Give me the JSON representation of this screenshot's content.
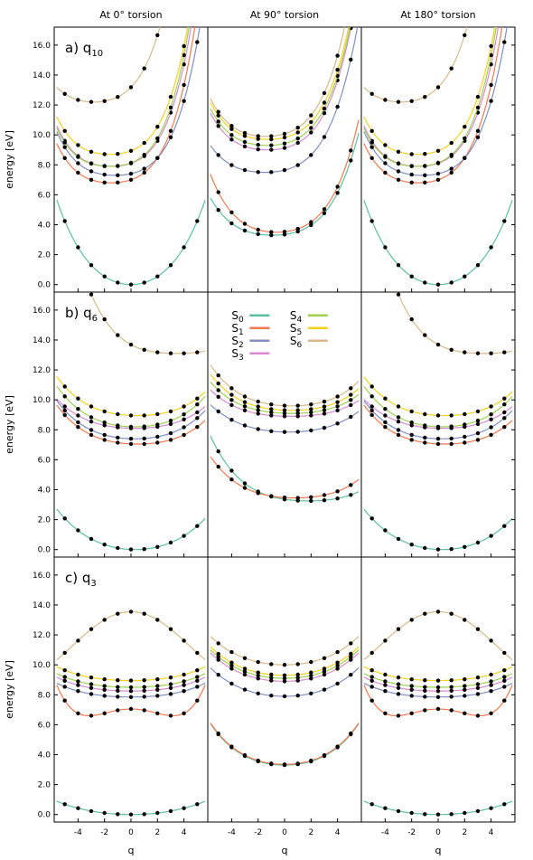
{
  "columns": [
    "At 0° torsion",
    "At 90° torsion",
    "At 180° torsion"
  ],
  "rows": [
    {
      "label": "a) q",
      "sub": "10"
    },
    {
      "label": "b) q",
      "sub": "6"
    },
    {
      "label": "c) q",
      "sub": "3"
    }
  ],
  "ylabel": "energy [eV]",
  "xlabel": "q",
  "yticks": [
    "0.0",
    "2.0",
    "4.0",
    "6.0",
    "8.0",
    "10.0",
    "12.0",
    "14.0",
    "16.0"
  ],
  "xticks": [
    "-4",
    "-2",
    "0",
    "2",
    "4"
  ],
  "legend": [
    {
      "base": "S",
      "sub": "0",
      "color": "#5cbf9f"
    },
    {
      "base": "S",
      "sub": "1",
      "color": "#f07850"
    },
    {
      "base": "S",
      "sub": "2",
      "color": "#7f8fc4"
    },
    {
      "base": "S",
      "sub": "3",
      "color": "#d98ad0"
    },
    {
      "base": "S",
      "sub": "4",
      "color": "#9fd050"
    },
    {
      "base": "S",
      "sub": "5",
      "color": "#f5d020"
    },
    {
      "base": "S",
      "sub": "6",
      "color": "#d8b888"
    }
  ],
  "chart_data": {
    "type": "line",
    "xlim": [
      -5.8,
      5.8
    ],
    "ylim": [
      -0.5,
      17.2
    ],
    "grid": false,
    "legend_position": "middle panel of row b",
    "curve_form": "E(q) = e0 + a*(q - c)^2 + b*(q - c)^4",
    "panels": [
      {
        "row": 0,
        "col": 0,
        "curves": [
          {
            "state": "S0",
            "e0": 0.0,
            "c": 0.0,
            "a": 0.13,
            "b": 0.0016
          },
          {
            "state": "S1",
            "e0": 6.8,
            "c": -1.5,
            "a": 0.08,
            "b": 0.0045
          },
          {
            "state": "S2",
            "e0": 7.3,
            "c": -1.2,
            "a": 0.07,
            "b": 0.0042
          },
          {
            "state": "S3",
            "e0": 7.9,
            "c": -1.5,
            "a": 0.08,
            "b": 0.0048
          },
          {
            "state": "S4",
            "e0": 7.9,
            "c": -1.6,
            "a": 0.08,
            "b": 0.005
          },
          {
            "state": "S5",
            "e0": 8.7,
            "c": -1.6,
            "a": 0.08,
            "b": 0.0048
          },
          {
            "state": "S6",
            "e0": 12.2,
            "c": -2.8,
            "a": 0.09,
            "b": 0.0045
          }
        ]
      },
      {
        "row": 0,
        "col": 1,
        "curves": [
          {
            "state": "S0",
            "e0": 3.3,
            "c": -0.9,
            "a": 0.06,
            "b": 0.0024
          },
          {
            "state": "S1",
            "e0": 3.5,
            "c": -0.6,
            "a": 0.08,
            "b": 0.003
          },
          {
            "state": "S2",
            "e0": 7.5,
            "c": -1.5,
            "a": 0.06,
            "b": 0.0028
          },
          {
            "state": "S3",
            "e0": 9.0,
            "c": -1.3,
            "a": 0.07,
            "b": 0.0034
          },
          {
            "state": "S4",
            "e0": 9.3,
            "c": -1.3,
            "a": 0.07,
            "b": 0.0034
          },
          {
            "state": "S5",
            "e0": 9.7,
            "c": -1.3,
            "a": 0.07,
            "b": 0.0034
          },
          {
            "state": "S6",
            "e0": 9.9,
            "c": -1.4,
            "a": 0.08,
            "b": 0.0036
          }
        ]
      },
      {
        "row": 0,
        "col": 2,
        "curves": [
          {
            "state": "S0",
            "e0": 0.0,
            "c": 0.0,
            "a": 0.13,
            "b": 0.0016
          },
          {
            "state": "S1",
            "e0": 6.8,
            "c": -1.5,
            "a": 0.08,
            "b": 0.0045
          },
          {
            "state": "S2",
            "e0": 7.3,
            "c": -1.2,
            "a": 0.07,
            "b": 0.0042
          },
          {
            "state": "S3",
            "e0": 7.9,
            "c": -1.5,
            "a": 0.08,
            "b": 0.0048
          },
          {
            "state": "S4",
            "e0": 7.9,
            "c": -1.6,
            "a": 0.08,
            "b": 0.005
          },
          {
            "state": "S5",
            "e0": 8.7,
            "c": -1.6,
            "a": 0.08,
            "b": 0.0048
          },
          {
            "state": "S6",
            "e0": 12.2,
            "c": -2.8,
            "a": 0.09,
            "b": 0.0045
          }
        ]
      },
      {
        "row": 1,
        "col": 0,
        "curves": [
          {
            "state": "S0",
            "e0": 0.0,
            "c": 0.3,
            "a": 0.06,
            "b": 0.0005
          },
          {
            "state": "S1",
            "e0": 7.05,
            "c": 0.5,
            "a": 0.04,
            "b": 0.0008
          },
          {
            "state": "S2",
            "e0": 7.4,
            "c": 0.3,
            "a": 0.045,
            "b": 0.0008
          },
          {
            "state": "S3",
            "e0": 8.1,
            "c": 0.3,
            "a": 0.035,
            "b": 0.0006
          },
          {
            "state": "S4",
            "e0": 8.2,
            "c": 0.3,
            "a": 0.05,
            "b": 0.0008
          },
          {
            "state": "S5",
            "e0": 8.95,
            "c": 0.5,
            "a": 0.04,
            "b": 0.0008
          },
          {
            "state": "S6",
            "e0": 13.1,
            "c": 3.5,
            "a": 0.03,
            "b": 0.0015
          }
        ]
      },
      {
        "row": 1,
        "col": 1,
        "curves": [
          {
            "state": "S0",
            "e0": 3.25,
            "c": 1.8,
            "a": 0.03,
            "b": 0.0009
          },
          {
            "state": "S1",
            "e0": 3.45,
            "c": 0.8,
            "a": 0.035,
            "b": 0.0008
          },
          {
            "state": "S2",
            "e0": 7.85,
            "c": 0.3,
            "a": 0.035,
            "b": 0.0005
          },
          {
            "state": "S3",
            "e0": 8.9,
            "c": 0.5,
            "a": 0.025,
            "b": 0.0006
          },
          {
            "state": "S4",
            "e0": 9.1,
            "c": 0.5,
            "a": 0.03,
            "b": 0.0007
          },
          {
            "state": "S5",
            "e0": 9.3,
            "c": 0.5,
            "a": 0.035,
            "b": 0.0008
          },
          {
            "state": "S6",
            "e0": 9.6,
            "c": 0.5,
            "a": 0.04,
            "b": 0.0009
          }
        ]
      },
      {
        "row": 1,
        "col": 2,
        "curves": [
          {
            "state": "S0",
            "e0": 0.0,
            "c": 0.3,
            "a": 0.06,
            "b": 0.0005
          },
          {
            "state": "S1",
            "e0": 7.05,
            "c": 0.5,
            "a": 0.04,
            "b": 0.0008
          },
          {
            "state": "S2",
            "e0": 7.4,
            "c": 0.3,
            "a": 0.045,
            "b": 0.0008
          },
          {
            "state": "S3",
            "e0": 8.1,
            "c": 0.3,
            "a": 0.035,
            "b": 0.0006
          },
          {
            "state": "S4",
            "e0": 8.2,
            "c": 0.3,
            "a": 0.05,
            "b": 0.0008
          },
          {
            "state": "S5",
            "e0": 8.95,
            "c": 0.5,
            "a": 0.04,
            "b": 0.0008
          },
          {
            "state": "S6",
            "e0": 13.1,
            "c": 3.5,
            "a": 0.03,
            "b": 0.0015
          }
        ]
      },
      {
        "row": 2,
        "col": 0,
        "curves": [
          {
            "state": "S0",
            "e0": 0.0,
            "c": 0,
            "a": 0.025,
            "b": 0.0001
          },
          {
            "state": "S1",
            "e0": 7.05,
            "c": 0,
            "a": -0.09,
            "b": 0.0045
          },
          {
            "state": "S2",
            "e0": 7.85,
            "c": 0,
            "a": 0.02,
            "b": 0.0003
          },
          {
            "state": "S3",
            "e0": 8.25,
            "c": 0,
            "a": 0.02,
            "b": 0.0003
          },
          {
            "state": "S4",
            "e0": 8.5,
            "c": 0,
            "a": 0.02,
            "b": 0.0003
          },
          {
            "state": "S5",
            "e0": 8.95,
            "c": 0,
            "a": 0.02,
            "b": 0.0003
          },
          {
            "state": "S6",
            "e0": 13.55,
            "c": 0,
            "a": -0.14,
            "b": 0.0012
          }
        ]
      },
      {
        "row": 2,
        "col": 1,
        "curves": [
          {
            "state": "S0",
            "e0": 3.3,
            "c": 0,
            "a": 0.06,
            "b": 0.0009
          },
          {
            "state": "S1",
            "e0": 3.35,
            "c": 0,
            "a": 0.06,
            "b": 0.0009
          },
          {
            "state": "S2",
            "e0": 7.9,
            "c": 0,
            "a": 0.045,
            "b": 0.0005
          },
          {
            "state": "S3",
            "e0": 8.9,
            "c": 0,
            "a": 0.045,
            "b": 0.0005
          },
          {
            "state": "S4",
            "e0": 9.1,
            "c": 0,
            "a": 0.045,
            "b": 0.0005
          },
          {
            "state": "S5",
            "e0": 9.3,
            "c": 0,
            "a": 0.045,
            "b": 0.0005
          },
          {
            "state": "S6",
            "e0": 10.0,
            "c": 0,
            "a": 0.045,
            "b": 0.0005
          }
        ]
      },
      {
        "row": 2,
        "col": 2,
        "curves": [
          {
            "state": "S0",
            "e0": 0.0,
            "c": 0,
            "a": 0.025,
            "b": 0.0001
          },
          {
            "state": "S1",
            "e0": 7.05,
            "c": 0,
            "a": -0.09,
            "b": 0.0045
          },
          {
            "state": "S2",
            "e0": 7.85,
            "c": 0,
            "a": 0.02,
            "b": 0.0003
          },
          {
            "state": "S3",
            "e0": 8.25,
            "c": 0,
            "a": 0.02,
            "b": 0.0003
          },
          {
            "state": "S4",
            "e0": 8.5,
            "c": 0,
            "a": 0.02,
            "b": 0.0003
          },
          {
            "state": "S5",
            "e0": 8.95,
            "c": 0,
            "a": 0.02,
            "b": 0.0003
          },
          {
            "state": "S6",
            "e0": 13.55,
            "c": 0,
            "a": -0.14,
            "b": 0.0012
          }
        ]
      }
    ]
  }
}
